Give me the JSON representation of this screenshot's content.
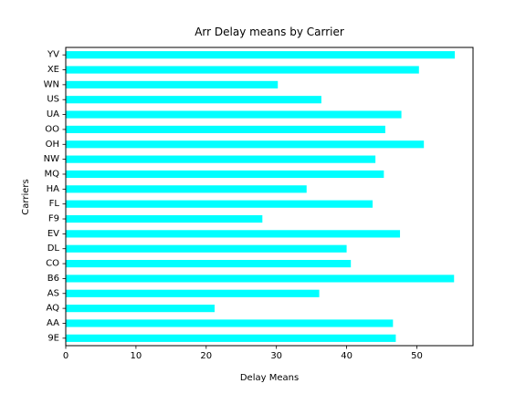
{
  "chart_data": {
    "type": "bar",
    "orientation": "horizontal",
    "title": "Arr Delay means by Carrier",
    "xlabel": "Delay Means",
    "ylabel": "Carriers",
    "categories": [
      "9E",
      "AA",
      "AQ",
      "AS",
      "B6",
      "CO",
      "DL",
      "EV",
      "F9",
      "FL",
      "HA",
      "MQ",
      "NW",
      "OH",
      "OO",
      "UA",
      "US",
      "WN",
      "XE",
      "YV"
    ],
    "values": [
      47.0,
      46.6,
      21.2,
      36.1,
      55.3,
      40.6,
      40.0,
      47.6,
      28.0,
      43.7,
      34.3,
      45.3,
      44.1,
      51.0,
      45.5,
      47.8,
      36.4,
      30.2,
      50.3,
      55.4
    ],
    "xlim": [
      0,
      58
    ],
    "xticks": [
      0,
      10,
      20,
      30,
      40,
      50
    ],
    "grid": false,
    "bar_color": "#00FFFF"
  }
}
